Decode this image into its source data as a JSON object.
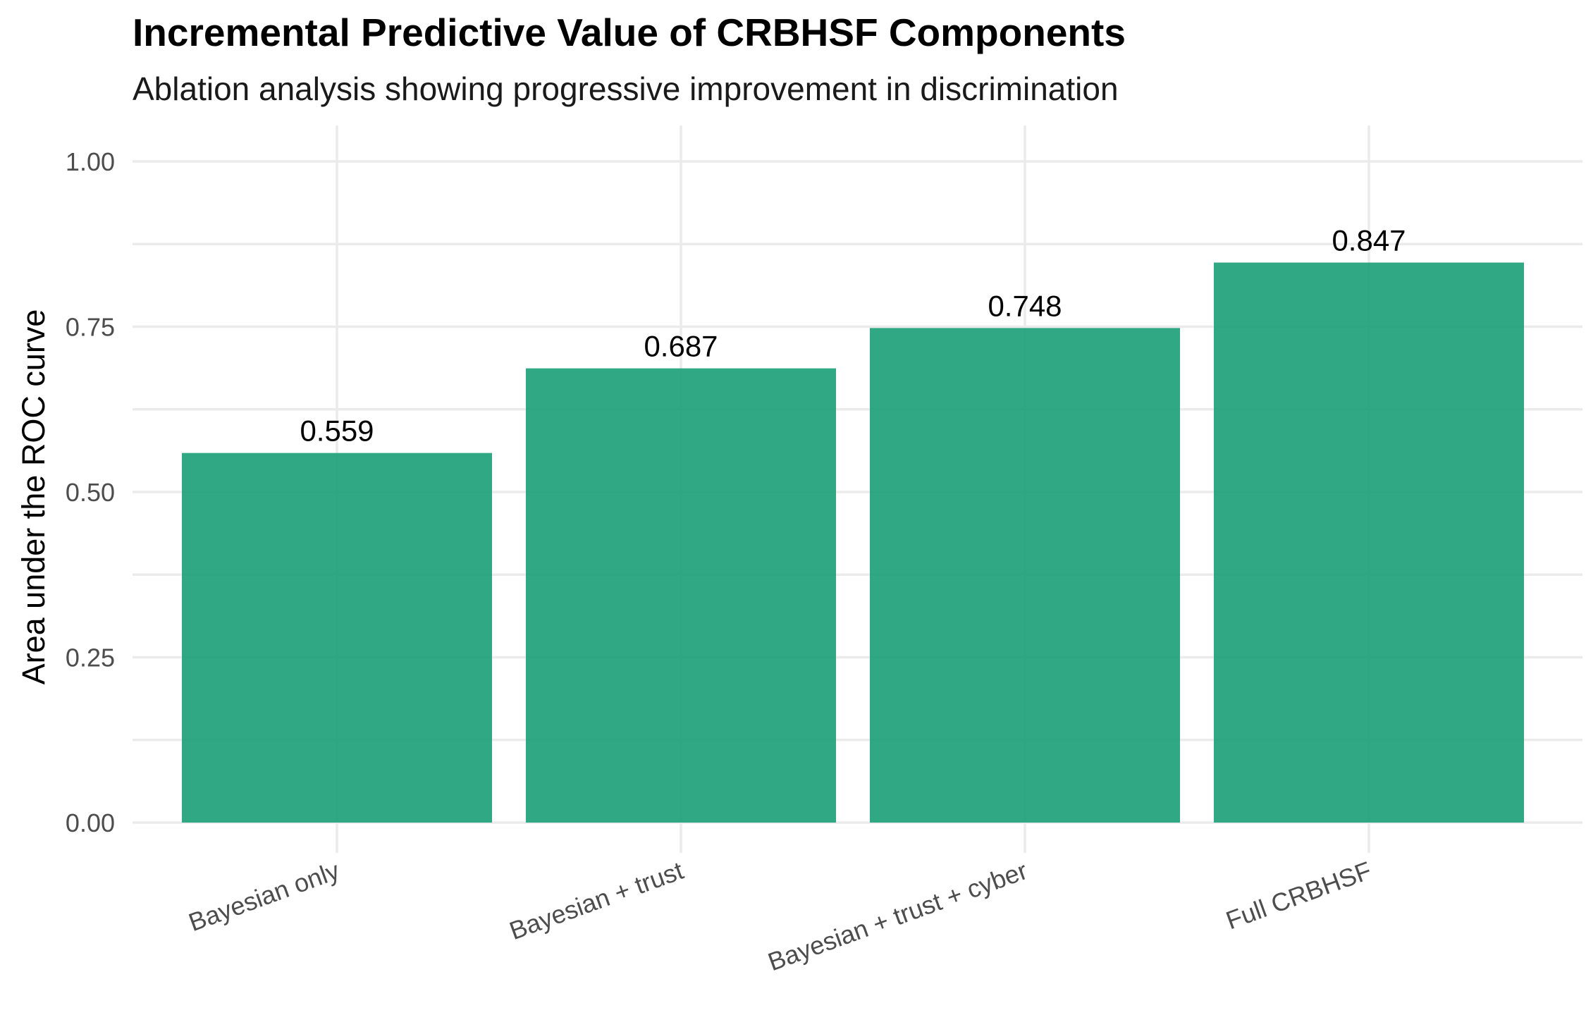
{
  "chart_data": {
    "type": "bar",
    "title": "Incremental Predictive Value of CRBHSF Components",
    "subtitle": "Ablation analysis showing progressive improvement in discrimination",
    "xlabel": "",
    "ylabel": "Area under the ROC curve",
    "categories": [
      "Bayesian only",
      "Bayesian + trust",
      "Bayesian + trust + cyber",
      "Full CRBHSF"
    ],
    "values": [
      0.559,
      0.687,
      0.748,
      0.847
    ],
    "data_labels": [
      "0.559",
      "0.687",
      "0.748",
      "0.847"
    ],
    "ylim": [
      0,
      1.05
    ],
    "yticks": [
      0,
      0.25,
      0.5,
      0.75,
      1.0
    ],
    "ytick_labels": [
      "0.00",
      "0.25",
      "0.50",
      "0.75",
      "1.00"
    ],
    "xtick_rotation": "20 degrees",
    "bar_color": "#1b9e77",
    "grid": true,
    "legend": "none"
  }
}
